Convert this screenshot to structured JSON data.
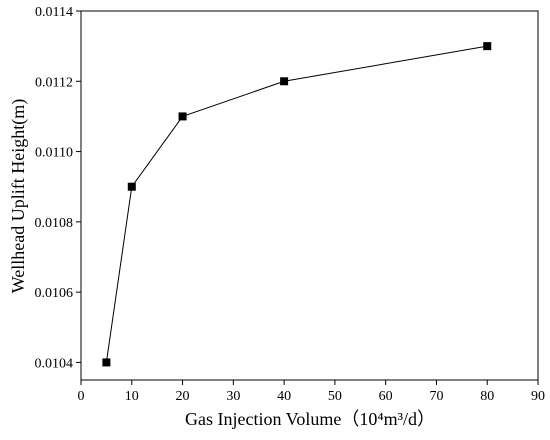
{
  "chart_data": {
    "type": "line",
    "xlabel": "Gas Injection Volume（10⁴m³/d）",
    "ylabel": "Wellhead Uplift Height(m)",
    "xlim": [
      0,
      90
    ],
    "ylim": [
      0.01035,
      0.0114
    ],
    "x_ticks": [
      "0",
      "10",
      "20",
      "30",
      "40",
      "50",
      "60",
      "70",
      "80",
      "90"
    ],
    "y_ticks": [
      "0.0104",
      "0.0106",
      "0.0108",
      "0.0110",
      "0.0112",
      "0.0114"
    ],
    "x_tick_values": [
      0,
      10,
      20,
      30,
      40,
      50,
      60,
      70,
      80,
      90
    ],
    "y_tick_values": [
      0.0104,
      0.0106,
      0.0108,
      0.011,
      0.0112,
      0.0114
    ],
    "series": [
      {
        "x": [
          5,
          10,
          20,
          40,
          80
        ],
        "y": [
          0.0104,
          0.0109,
          0.0111,
          0.0112,
          0.0113
        ],
        "marker": "square",
        "color": "#000000"
      }
    ],
    "grid": false,
    "legend": "none"
  }
}
